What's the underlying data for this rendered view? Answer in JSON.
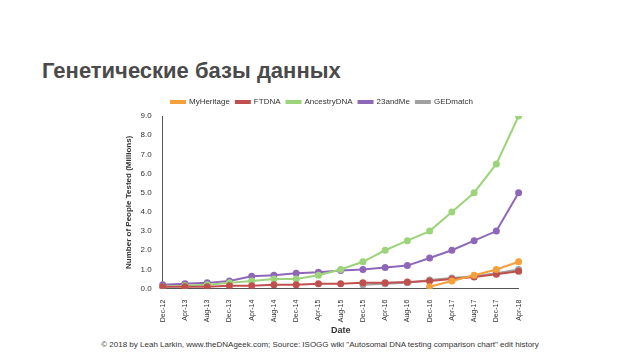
{
  "chart_data": {
    "type": "line",
    "title": "Генетические базы данных",
    "x_label": "Date",
    "y_label": "Number of People Tested (Millions)",
    "annotations": [
      "© 2018 by Leah Larkin, www.theDNAgeek.com; Source: ISOGG wiki \"Autosomal DNA testing comparison chart\" edit history"
    ],
    "categories": [
      "Dec-12",
      "Apr-13",
      "Aug-13",
      "Dec-13",
      "Apr-14",
      "Aug-14",
      "Dec-14",
      "Apr-15",
      "Aug-15",
      "Dec-15",
      "Apr-16",
      "Aug-16",
      "Dec-16",
      "Apr-17",
      "Aug-17",
      "Dec-17",
      "Apr-18"
    ],
    "series": [
      {
        "name": "MyHeritage",
        "color": "#f5a03c",
        "marker": "circle",
        "line_style": "solid",
        "values": [
          null,
          null,
          null,
          null,
          null,
          null,
          null,
          null,
          null,
          null,
          null,
          null,
          0.1,
          0.4,
          0.7,
          1.0,
          1.4
        ]
      },
      {
        "name": "FTDNA",
        "color": "#c0504d",
        "marker": "circle",
        "line_style": "solid",
        "values": [
          0.1,
          0.1,
          0.1,
          0.15,
          0.15,
          0.2,
          0.2,
          0.25,
          0.25,
          0.3,
          0.3,
          0.35,
          0.4,
          0.5,
          0.6,
          0.75,
          0.9
        ]
      },
      {
        "name": "AncestryDNA",
        "color": "#9bd47a",
        "marker": "circle",
        "line_style": "solid",
        "values": [
          0.1,
          0.15,
          0.2,
          0.3,
          0.4,
          0.5,
          0.5,
          0.7,
          1.0,
          1.4,
          2.0,
          2.5,
          3.0,
          4.0,
          5.0,
          6.5,
          9.0
        ]
      },
      {
        "name": "23andMe",
        "color": "#8e67b8",
        "marker": "circle",
        "line_style": "solid",
        "values": [
          0.2,
          0.25,
          0.3,
          0.4,
          0.65,
          0.7,
          0.8,
          0.85,
          0.95,
          1.0,
          1.1,
          1.2,
          1.6,
          2.0,
          2.5,
          3.0,
          5.0
        ]
      },
      {
        "name": "GEDmatch",
        "color": "#a0a0a0",
        "marker": "circle",
        "line_style": "solid",
        "values": [
          null,
          null,
          null,
          null,
          null,
          null,
          null,
          null,
          null,
          0.2,
          0.25,
          0.3,
          0.45,
          0.55,
          0.65,
          0.8,
          1.0
        ]
      }
    ],
    "ylim": [
      0,
      9
    ],
    "yticks": [
      {
        "value": 0,
        "label": "0.0"
      },
      {
        "value": 1,
        "label": "1.0"
      },
      {
        "value": 2,
        "label": "2.0"
      },
      {
        "value": 3,
        "label": "3.0"
      },
      {
        "value": 4,
        "label": "4.0"
      },
      {
        "value": 5,
        "label": "5.0"
      },
      {
        "value": 6,
        "label": "6.0"
      },
      {
        "value": 7,
        "label": "7.0"
      },
      {
        "value": 8,
        "label": "8.0"
      },
      {
        "value": 9,
        "label": "9.0"
      }
    ],
    "grid": false,
    "legend": "top"
  }
}
